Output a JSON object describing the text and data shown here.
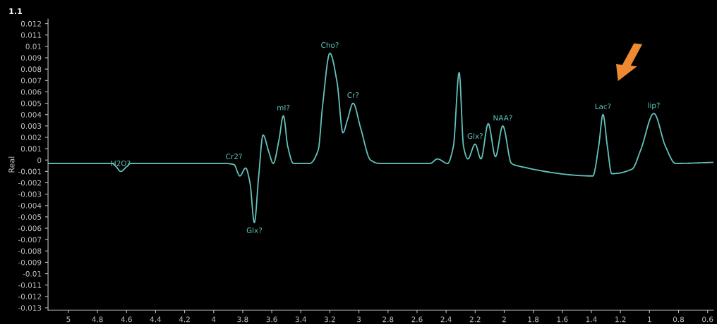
{
  "chart_data": {
    "type": "line",
    "ylabel": "Real",
    "x": [
      5.14,
      4.7,
      4.67,
      4.64,
      4.6,
      4.57,
      3.92,
      3.86,
      3.82,
      3.78,
      3.75,
      3.72,
      3.69,
      3.66,
      3.62,
      3.59,
      3.55,
      3.52,
      3.49,
      3.45,
      3.34,
      3.28,
      3.25,
      3.2,
      3.15,
      3.11,
      3.08,
      3.04,
      2.99,
      2.92,
      2.86,
      2.51,
      2.46,
      2.39,
      2.35,
      2.31,
      2.28,
      2.25,
      2.2,
      2.16,
      2.11,
      2.06,
      2.01,
      1.95,
      1.91,
      1.39,
      1.35,
      1.32,
      1.29,
      1.26,
      1.12,
      1.06,
      0.97,
      0.89,
      0.82,
      0.56
    ],
    "series": [
      {
        "color": "#62c3bd",
        "values": [
          -0.0003,
          -0.0003,
          -0.0006,
          -0.001,
          -0.0006,
          -0.0003,
          -0.0003,
          -0.0004,
          -0.0014,
          -0.0007,
          -0.002,
          -0.0055,
          -0.0014,
          0.0022,
          0.0007,
          -0.0003,
          0.0018,
          0.0039,
          0.0012,
          -0.0003,
          -0.0003,
          0.0009,
          0.0048,
          0.0094,
          0.0068,
          0.0024,
          0.0035,
          0.005,
          0.0029,
          0.0,
          -0.0003,
          -0.0003,
          0.0001,
          -0.0003,
          0.0012,
          0.0077,
          0.0012,
          0.0001,
          0.0014,
          0.0001,
          0.0032,
          0.0003,
          0.003,
          -0.0003,
          -0.0005,
          -0.0014,
          0.0012,
          0.004,
          0.0012,
          -0.0012,
          -0.0008,
          0.0009,
          0.0041,
          0.0012,
          -0.0003,
          -0.0002
        ]
      }
    ],
    "xlim": [
      5.14,
      0.56
    ],
    "ylim": [
      -0.0132,
      0.0124
    ],
    "xticks": [
      5,
      4.8,
      4.6,
      4.4,
      4.2,
      4,
      3.8,
      3.6,
      3.4,
      3.2,
      3,
      2.8,
      2.6,
      2.4,
      2.2,
      2,
      1.8,
      1.6,
      1.4,
      1.2,
      1,
      0.8,
      0.6
    ],
    "yticks": [
      0.012,
      0.011,
      0.01,
      0.009,
      0.008,
      0.007,
      0.006,
      0.005,
      0.004,
      0.003,
      0.002,
      0.001,
      0,
      -0.001,
      -0.002,
      -0.003,
      -0.004,
      -0.005,
      -0.006,
      -0.007,
      -0.008,
      -0.009,
      -0.01,
      -0.011,
      -0.012,
      -0.013
    ],
    "grid": false,
    "marker": "none",
    "line_style": "solid",
    "annotations": [
      "1.1",
      {
        "text": "H2O?",
        "x": 4.64,
        "y": -0.001
      },
      {
        "text": "Cr2?",
        "x": 3.86,
        "y": -0.0004
      },
      {
        "text": "Glx?",
        "x": 3.72,
        "y": -0.0055
      },
      {
        "text": "mI?",
        "x": 3.52,
        "y": 0.0039
      },
      {
        "text": "Cho?",
        "x": 3.2,
        "y": 0.0094
      },
      {
        "text": "Cr?",
        "x": 3.04,
        "y": 0.005
      },
      {
        "text": "Glx?",
        "x": 2.2,
        "y": 0.0014
      },
      {
        "text": "NAA?",
        "x": 2.01,
        "y": 0.003
      },
      {
        "text": "Lac?",
        "x": 1.32,
        "y": 0.004
      },
      {
        "text": "lip?",
        "x": 0.97,
        "y": 0.0041
      }
    ]
  }
}
